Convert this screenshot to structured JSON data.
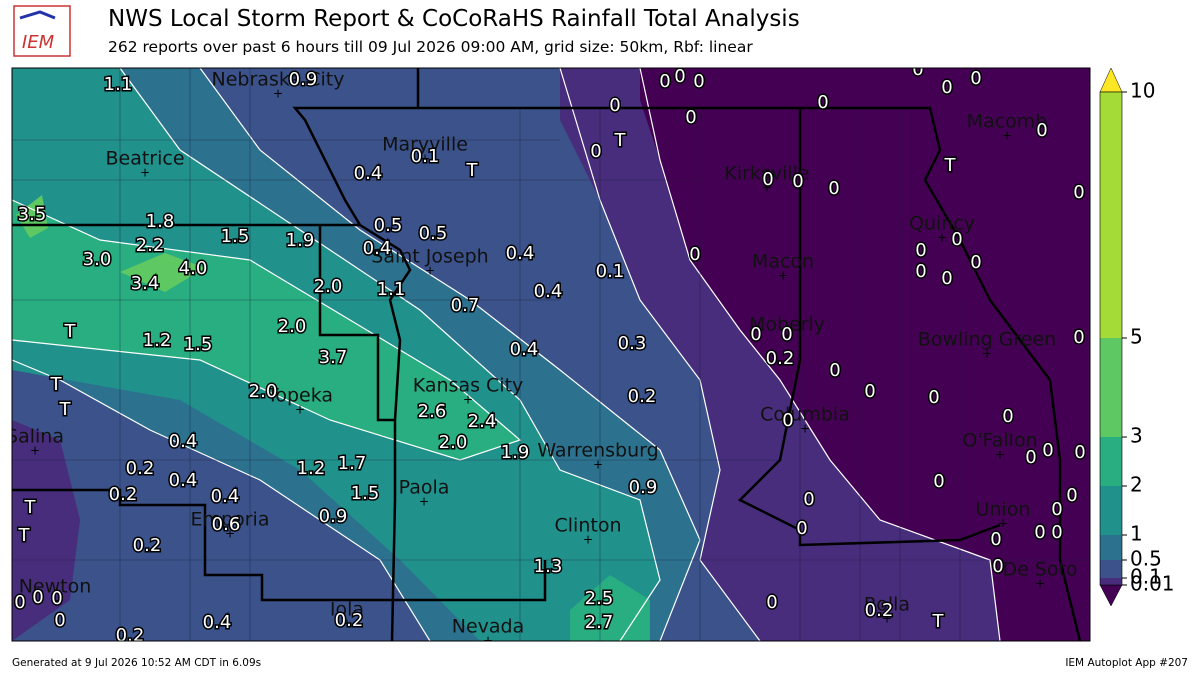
{
  "header": {
    "logo": "IEM",
    "title": "NWS Local Storm Report & CoCoRaHS Rainfall Total Analysis",
    "subtitle": "262 reports over past 6 hours till 09 Jul 2026 09:00 AM, grid size: 50km, Rbf: linear"
  },
  "map": {
    "cities": [
      "Nebraska City",
      "Beatrice",
      "Maryville",
      "Saint Joseph",
      "Kirksville",
      "Macomb",
      "Quincy",
      "Macon",
      "Moberly",
      "Bowling Green",
      "Kansas City",
      "Topeka",
      "Columbia",
      "O'Fallon",
      "Salina",
      "Warrensburg",
      "Paola",
      "Emporia",
      "Clinton",
      "Union",
      "Newton",
      "De Soto",
      "Iola",
      "Nevada",
      "Rolla"
    ],
    "reports": [
      "1.1",
      "0.9",
      "0.1",
      "T",
      "0.4",
      "0.5",
      "0.5",
      "0.4",
      "0.4",
      "0.1",
      "0.4",
      "0.7",
      "1.1",
      "2.0",
      "1.9",
      "1.5",
      "1.8",
      "2.2",
      "3.0",
      "4.0",
      "3.4",
      "3.5",
      "2.0",
      "3.7",
      "1.2",
      "1.5",
      "T",
      "T",
      "T",
      "2.0",
      "2.6",
      "2.4",
      "2.0",
      "1.9",
      "0.4",
      "0.3",
      "0.2",
      "0.9",
      "0.4",
      "0.2",
      "0.4",
      "1.2",
      "1.7",
      "1.5",
      "0.4",
      "0.2",
      "0.6",
      "0.9",
      "0.2",
      "T",
      "T",
      "1.3",
      "2.5",
      "2.7",
      "0.4",
      "0.2",
      "0.2",
      "0",
      "0",
      "0",
      "0",
      "0",
      "0.2",
      "T",
      "0",
      "0",
      "0",
      "0",
      "0",
      "0",
      "0",
      "0",
      "0",
      "0",
      "0",
      "0",
      "0",
      "0",
      "0",
      "0",
      "0.2",
      "0",
      "0",
      "0",
      "0",
      "0",
      "0",
      "0",
      "0",
      "0",
      "T",
      "0",
      "0",
      "0",
      "0",
      "0",
      "T",
      "0",
      "0",
      "0",
      "0",
      "0",
      "0",
      "0",
      "0",
      "0",
      "0",
      "0",
      "0"
    ]
  },
  "colorbar": {
    "ticks": [
      0.01,
      0.1,
      0.5,
      1,
      2,
      3,
      5,
      10
    ]
  },
  "footer": {
    "left": "Generated at 9 Jul 2026 10:52 AM CDT in 6.09s",
    "right": "IEM Autoplot App #207"
  }
}
